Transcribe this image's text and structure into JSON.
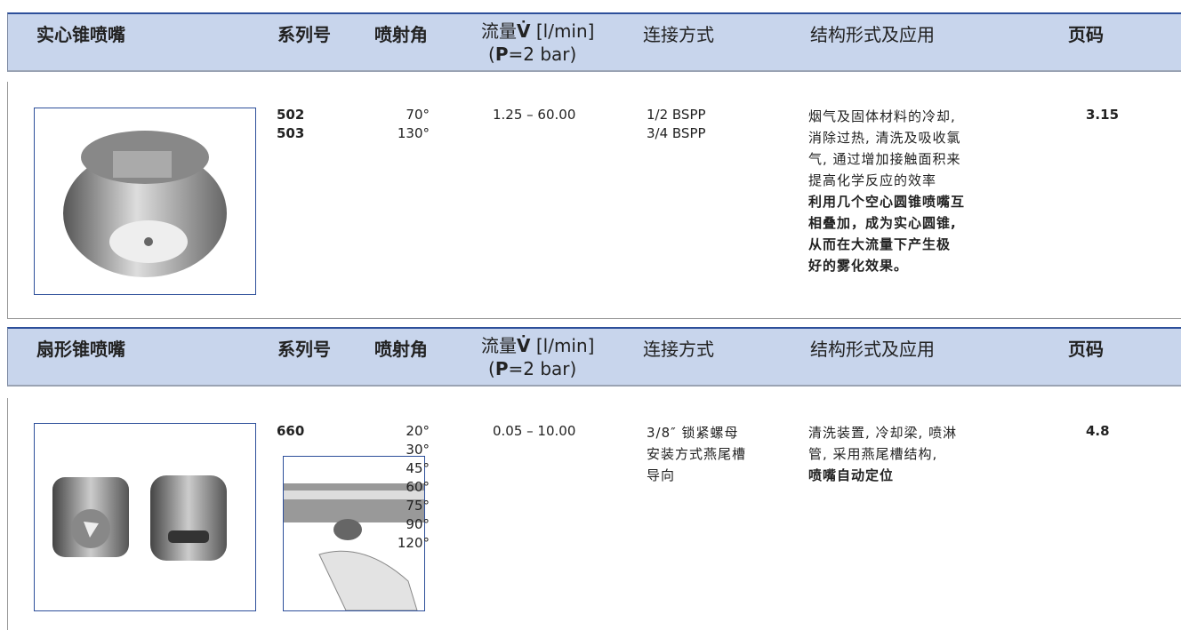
{
  "sections": [
    {
      "header": {
        "title": "实心锥喷嘴",
        "series": "系列号",
        "angle": "喷射角",
        "flow": {
          "line1": [
            "流量",
            "V̇",
            " [l/min]"
          ],
          "line2": [
            "(",
            "P",
            "=2 bar)"
          ]
        },
        "connection": "连接方式",
        "application": "结构形式及应用",
        "page": "页码"
      },
      "row": {
        "series": [
          "502",
          "503"
        ],
        "angles": [
          "70°",
          "130°"
        ],
        "flow": "1.25 – 60.00",
        "connection": [
          "1/2 BSPP",
          "3/4 BSPP"
        ],
        "application": [
          "烟气及固体材料的冷却,",
          "消除过热, 清洗及吸收氯",
          "气, 通过增加接触面积来",
          "提高化学反应的效率"
        ],
        "application_bold": [
          "利用几个空心圆锥喷嘴互",
          "相叠加，成为实心圆锥,",
          "从而在大流量下产生极",
          "好的雾化效果。"
        ],
        "page": "3.15"
      }
    },
    {
      "header": {
        "title": "扇形锥喷嘴",
        "series": "系列号",
        "angle": "喷射角",
        "flow": {
          "line1": [
            "流量",
            "V̇",
            " [l/min]"
          ],
          "line2": [
            "(",
            "P",
            "=2 bar)"
          ]
        },
        "connection": "连接方式",
        "application": "结构形式及应用",
        "page": "页码"
      },
      "row": {
        "series": [
          "660"
        ],
        "angles": [
          "20°",
          "30°",
          "45°",
          "60°",
          "75°",
          "90°",
          "120°"
        ],
        "flow": "0.05 – 10.00",
        "connection": [
          "3/8″ 锁紧螺母",
          "安装方式燕尾槽",
          "导向"
        ],
        "application": [
          "清洗装置, 冷却梁, 喷淋",
          "管, 采用燕尾槽结构,"
        ],
        "application_bold": [
          "喷嘴自动定位"
        ],
        "page": "4.8"
      }
    }
  ]
}
